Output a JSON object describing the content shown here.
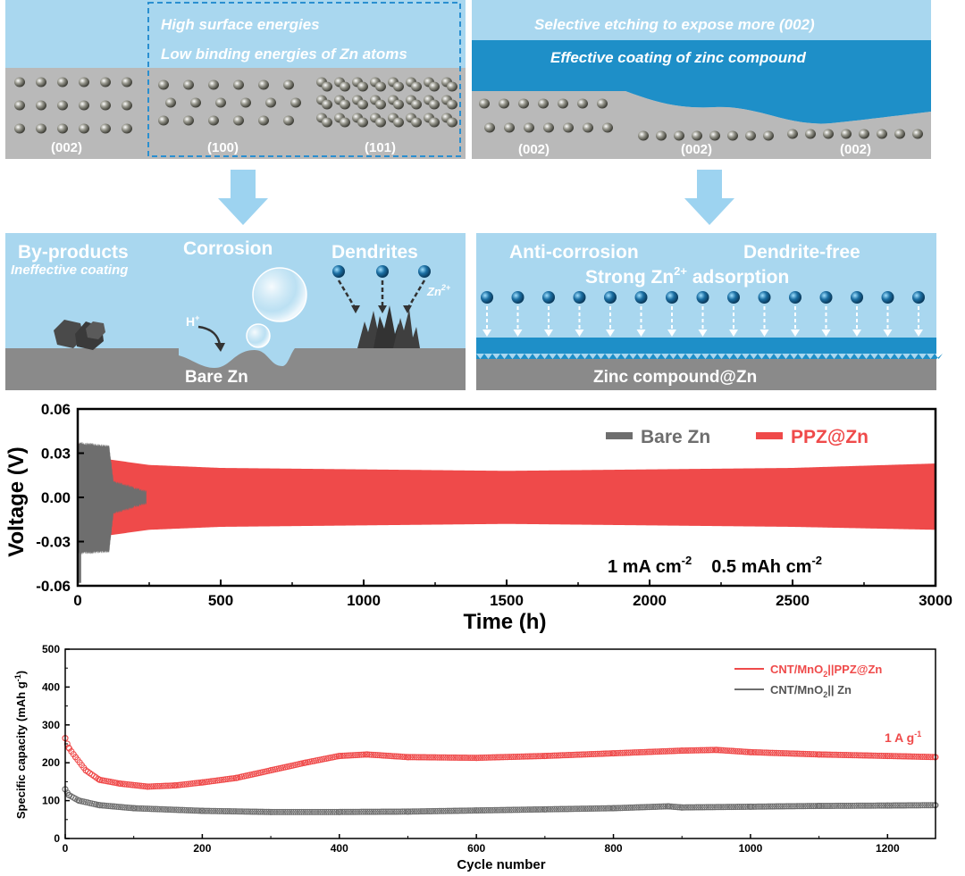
{
  "schematic": {
    "top_left": {
      "highlight_line1": "High surface energies",
      "highlight_line2": "Low binding energies of Zn atoms",
      "facet_labels": [
        "(002)",
        "(100)",
        "(101)"
      ]
    },
    "top_right": {
      "line1": "Selective etching to expose more (002)",
      "line2": "Effective coating of zinc compound",
      "facet_labels": [
        "(002)",
        "(002)",
        "(002)"
      ]
    },
    "mid_left": {
      "byproducts": "By-products",
      "ineffective": "Ineffective coating",
      "corrosion": "Corrosion",
      "dendrites": "Dendrites",
      "zn_ion": "Zn",
      "zn_ion_charge": "2+",
      "proton": "H",
      "proton_charge": "+",
      "bare_zn": "Bare Zn"
    },
    "mid_right": {
      "anti_corrosion": "Anti-corrosion",
      "dendrite_free": "Dendrite-free",
      "strong_prefix": "Strong Zn",
      "strong_charge": "2+",
      "strong_suffix": " adsorption",
      "zinc_compound": "Zinc compound@Zn"
    }
  },
  "colors": {
    "sky": "#a9d7ef",
    "highlight_border": "#2a8fd0",
    "coating": "#1e8fc8",
    "metal": "#b9b9b9",
    "metal_dark": "#8a8a8a",
    "arrow": "#9dd3f0",
    "ion": "#1b6fa3",
    "red_series": "#ef4a4a",
    "gray_series": "#6e6e6e"
  },
  "chart_data": [
    {
      "type": "line",
      "title": "",
      "xlabel": "Time (h)",
      "ylabel": "Voltage (V)",
      "xlim": [
        0,
        3000
      ],
      "ylim": [
        -0.06,
        0.06
      ],
      "xticks": [
        0,
        500,
        1000,
        1500,
        2000,
        2500,
        3000
      ],
      "yticks": [
        -0.06,
        -0.03,
        0.0,
        0.03,
        0.06
      ],
      "ytick_labels": [
        "-0.06",
        "-0.03",
        "0.00",
        "0.03",
        "0.06"
      ],
      "legend": "top-right",
      "series": [
        {
          "name": "Bare Zn",
          "t_end": 240,
          "envelope_upper": [
            [
              0,
              0.036
            ],
            [
              110,
              0.034
            ],
            [
              125,
              0.01
            ],
            [
              240,
              0.003
            ]
          ],
          "envelope_lower": [
            [
              0,
              -0.037
            ],
            [
              110,
              -0.036
            ],
            [
              125,
              -0.01
            ],
            [
              240,
              -0.003
            ]
          ]
        },
        {
          "name": "PPZ@Zn",
          "t_end": 3000,
          "envelope_upper": [
            [
              0,
              0.037
            ],
            [
              100,
              0.026
            ],
            [
              250,
              0.022
            ],
            [
              500,
              0.02
            ],
            [
              1500,
              0.018
            ],
            [
              2500,
              0.02
            ],
            [
              3000,
              0.023
            ]
          ],
          "envelope_lower": [
            [
              0,
              -0.037
            ],
            [
              100,
              -0.026
            ],
            [
              250,
              -0.022
            ],
            [
              500,
              -0.02
            ],
            [
              1500,
              -0.018
            ],
            [
              2500,
              -0.02
            ],
            [
              3000,
              -0.022
            ]
          ]
        }
      ],
      "annotation_value1": "1 mA cm",
      "annotation_exp1": "-2",
      "annotation_value2": "0.5 mAh cm",
      "annotation_exp2": "-2"
    },
    {
      "type": "scatter",
      "title": "",
      "xlabel": "Cycle number",
      "ylabel_main": "Specific capacity (mAh g",
      "ylabel_exp": "-1",
      "ylabel_close": ")",
      "xlim": [
        0,
        1270
      ],
      "ylim": [
        0,
        500
      ],
      "xticks": [
        0,
        200,
        400,
        600,
        800,
        1000,
        1200
      ],
      "yticks": [
        0,
        100,
        200,
        300,
        400,
        500
      ],
      "legend": "top-right",
      "series": [
        {
          "name_main": "CNT/MnO",
          "name_sub": "2",
          "name_rest": "||PPZ@Zn",
          "points": [
            [
              0,
              265
            ],
            [
              5,
              240
            ],
            [
              15,
              215
            ],
            [
              30,
              180
            ],
            [
              50,
              155
            ],
            [
              80,
              145
            ],
            [
              120,
              137
            ],
            [
              160,
              140
            ],
            [
              200,
              148
            ],
            [
              250,
              160
            ],
            [
              300,
              180
            ],
            [
              350,
              200
            ],
            [
              400,
              218
            ],
            [
              440,
              222
            ],
            [
              500,
              215
            ],
            [
              600,
              213
            ],
            [
              700,
              218
            ],
            [
              800,
              225
            ],
            [
              900,
              232
            ],
            [
              950,
              234
            ],
            [
              1000,
              228
            ],
            [
              1100,
              222
            ],
            [
              1200,
              218
            ],
            [
              1270,
              215
            ]
          ]
        },
        {
          "name_main": "CNT/MnO",
          "name_sub": "2",
          "name_rest": "|| Zn",
          "points": [
            [
              0,
              130
            ],
            [
              5,
              115
            ],
            [
              20,
              100
            ],
            [
              50,
              88
            ],
            [
              100,
              80
            ],
            [
              200,
              73
            ],
            [
              300,
              70
            ],
            [
              400,
              70
            ],
            [
              500,
              71
            ],
            [
              600,
              74
            ],
            [
              700,
              77
            ],
            [
              800,
              80
            ],
            [
              880,
              85
            ],
            [
              900,
              82
            ],
            [
              1000,
              84
            ],
            [
              1100,
              86
            ],
            [
              1200,
              87
            ],
            [
              1270,
              88
            ]
          ]
        }
      ],
      "annotation_main": "1 A g",
      "annotation_exp": "-1"
    }
  ]
}
